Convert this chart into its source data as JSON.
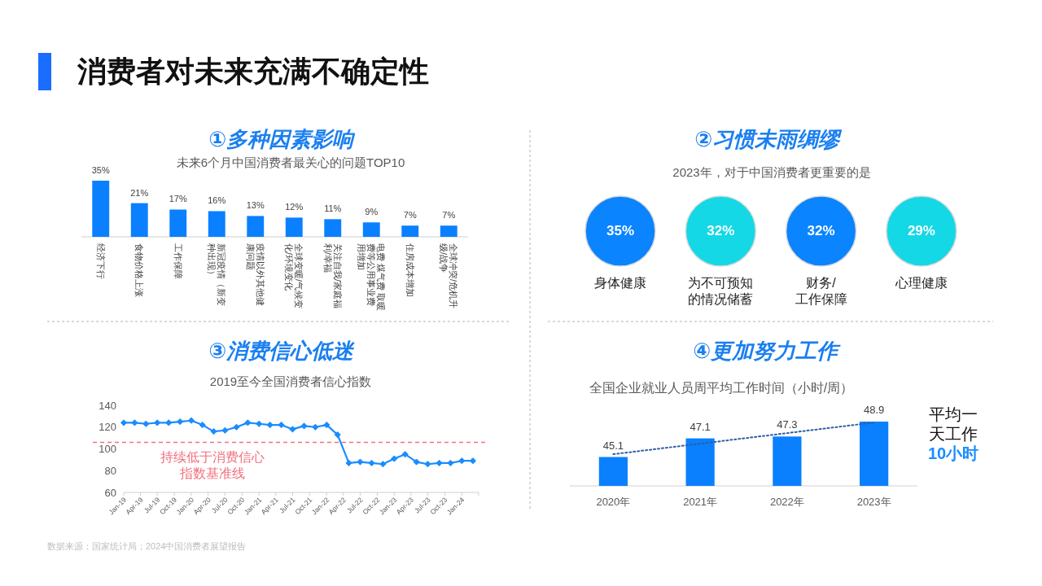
{
  "chart_data": [
    {
      "type": "other",
      "title": "消费者对未来充满不确定性"
    },
    {
      "type": "bar",
      "title": "①多种因素影响",
      "subtitle": "未来6个月中国消费者最关心的问题TOP10",
      "categories": [
        "经济下行",
        "食物价格上涨",
        "工作保障",
        "新冠疫情（新变种出现）",
        "疫情以外其他健康问题",
        "全球变暖/气候变化/环境变化",
        "关注自我/家庭福利/幸福",
        "电费 煤气费 取暖费等公用事业费用增加",
        "住房成本增加",
        "全球冲突/危机升级/战争"
      ],
      "values": [
        35,
        21,
        17,
        16,
        13,
        12,
        11,
        9,
        7,
        7
      ],
      "color": "#0a80ff",
      "value_labels": [
        "35%",
        "21%",
        "17%",
        "16%",
        "13%",
        "12%",
        "11%",
        "9%",
        "7%",
        "7%"
      ]
    },
    {
      "type": "other",
      "title": "②习惯未雨绸缪",
      "subtitle": "2023年，对于中国消费者更重要的是",
      "categories": [
        "身体健康",
        "为不可预知的情况储蓄",
        "财务/工作保障",
        "心理健康"
      ],
      "values": [
        35,
        32,
        32,
        29
      ],
      "colors": [
        "#0a84ff",
        "#14d8e6",
        "#0a84ff",
        "#14d8e6"
      ],
      "value_labels": [
        "35%",
        "32%",
        "32%",
        "29%"
      ]
    },
    {
      "type": "line",
      "title": "③消费信心低迷",
      "subtitle": "2019至今全国消费者信心指数",
      "x": [
        "2019-01",
        "2019-03",
        "2019-05",
        "2019-07",
        "2019-09",
        "2019-11",
        "2020-01",
        "2020-03",
        "2020-05",
        "2020-07",
        "2020-09",
        "2020-11",
        "2021-01",
        "2021-03",
        "2021-05",
        "2021-07",
        "2021-09",
        "2021-11",
        "2022-01",
        "2022-03",
        "2022-05",
        "2022-07",
        "2022-09",
        "2022-11",
        "2023-01",
        "2023-03",
        "2023-05",
        "2023-07",
        "2023-09",
        "2023-11",
        "2024-01",
        "2024-03"
      ],
      "series": [
        {
          "color": "#1a8cff",
          "values": [
            124,
            124,
            123,
            124,
            124,
            125,
            126,
            122,
            116,
            117,
            120,
            124,
            123,
            122,
            122,
            118,
            121,
            120,
            122,
            113,
            87,
            88,
            87,
            86,
            91,
            95,
            88,
            86,
            87,
            87,
            89,
            89
          ]
        }
      ],
      "xlim": [
        "2019-01",
        "2024-04"
      ],
      "xticks": [
        {
          "value": "2019-01",
          "label": "Jan-19"
        },
        {
          "value": "2019-04",
          "label": "Apr-19"
        },
        {
          "value": "2019-07",
          "label": "Jul-19"
        },
        {
          "value": "2019-10",
          "label": "Oct-19"
        },
        {
          "value": "2020-01",
          "label": "Jan-20"
        },
        {
          "value": "2020-04",
          "label": "Apr-20"
        },
        {
          "value": "2020-07",
          "label": "Jul-20"
        },
        {
          "value": "2020-10",
          "label": "Oct-20"
        },
        {
          "value": "2021-01",
          "label": "Jan-21"
        },
        {
          "value": "2021-04",
          "label": "Apr-21"
        },
        {
          "value": "2021-07",
          "label": "Jul-21"
        },
        {
          "value": "2021-10",
          "label": "Oct-21"
        },
        {
          "value": "2022-01",
          "label": "Jan-22"
        },
        {
          "value": "2022-04",
          "label": "Apr-22"
        },
        {
          "value": "2022-07",
          "label": "Jul-22"
        },
        {
          "value": "2022-10",
          "label": "Oct-22"
        },
        {
          "value": "2023-01",
          "label": "Jan-23"
        },
        {
          "value": "2023-04",
          "label": "Apr-23"
        },
        {
          "value": "2023-07",
          "label": "Jul-23"
        },
        {
          "value": "2023-10",
          "label": "Oct-23"
        },
        {
          "value": "2024-01",
          "label": "Jan-24"
        },
        {
          "value": "2024-04",
          "label": null
        }
      ],
      "ylim": [
        60,
        140
      ],
      "yticks": [
        60,
        80,
        100,
        120,
        140
      ],
      "marker": "diamond",
      "ref_lines": [
        {
          "axis": "y",
          "value": 106,
          "label": "持续低于消费信心指数基准线",
          "color": "#f2707e",
          "line_style": "dashed"
        }
      ]
    },
    {
      "type": "bar",
      "title": "④更加努力工作",
      "subtitle": "全国企业就业人员周平均工作时间（小时/周）",
      "categories": [
        "2020年",
        "2021年",
        "2022年",
        "2023年"
      ],
      "series": [
        {
          "type": "bar",
          "color": "#0a80ff",
          "values": [
            45.1,
            47.1,
            47.3,
            48.9
          ],
          "value_labels": [
            "45.1",
            "47.1",
            "47.3",
            "48.9"
          ]
        },
        {
          "type": "line",
          "x": [
            "2020年",
            "2023年"
          ],
          "values": [
            45.4,
            48.8
          ],
          "color": "#2f5fa7",
          "line_style": "dotted"
        }
      ],
      "ylim": [
        42,
        48.9
      ],
      "tick_labels": "x",
      "annotations": [
        "平均一天工作",
        "10小时"
      ]
    },
    {
      "type": "other",
      "annotations": [
        "数据来源：国家统计局；2024中国消费者展望报告"
      ]
    }
  ]
}
